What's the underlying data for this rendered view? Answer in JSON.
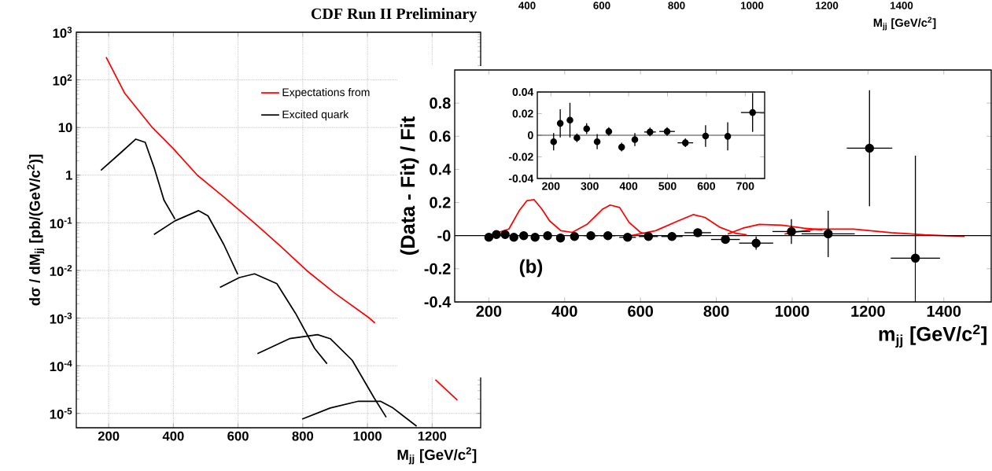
{
  "chart_data": [
    {
      "type": "line",
      "title": "CDF Run II Preliminary",
      "xlabel": "M$_{jj}$ [GeV/c$^{2}$]",
      "ylabel": "dσ / dM$_{jj}$ [pb/(GeV/c$^{2}$)]",
      "xlim": [
        100,
        1350
      ],
      "xticks": [
        200,
        400,
        600,
        800,
        1000,
        1200
      ],
      "ylim": [
        5e-06,
        1000
      ],
      "yticks": [
        {
          "value": 1e-05,
          "label": "10$^{-5}$"
        },
        {
          "value": 0.0001,
          "label": "10$^{-4}$"
        },
        {
          "value": 0.001,
          "label": "10$^{-3}$"
        },
        {
          "value": 0.01,
          "label": "10$^{-2}$"
        },
        {
          "value": 0.1,
          "label": "10$^{-1}$"
        },
        1,
        10,
        {
          "value": 100,
          "label": "10$^{2}$"
        },
        {
          "value": 1000,
          "label": "10$^{3}$"
        }
      ],
      "log": "y",
      "grid": true,
      "legend": "top right",
      "series": [
        {
          "name": "Expectations from",
          "color": "#ff0000",
          "x": [
            192,
            250,
            335,
            400,
            474,
            560,
            650,
            730,
            812,
            900,
            1006,
            1023,
            1110,
            1210,
            1278
          ],
          "values": [
            300,
            52,
            10,
            3.6,
            1,
            0.33,
            0.1,
            0.033,
            0.01,
            0.0033,
            0.001,
            0.00079,
            null,
            5.1e-05,
            1.9e-05
          ]
        },
        {
          "name": "Excited quark",
          "color": "#000000",
          "x": [
            176,
            236,
            284,
            313,
            342,
            371,
            405
          ],
          "values": [
            1.26,
            2.9,
            5.7,
            4.9,
            1.35,
            0.3,
            0.12
          ]
        },
        {
          "color": "#000000",
          "x": [
            340,
            405,
            478,
            507,
            556,
            599
          ],
          "values": [
            0.057,
            0.11,
            0.18,
            0.14,
            0.035,
            0.0083
          ]
        },
        {
          "color": "#000000",
          "x": [
            544,
            604,
            651,
            720,
            778,
            837,
            875
          ],
          "values": [
            0.0044,
            0.0071,
            0.0085,
            0.0053,
            0.00125,
            0.00023,
            0.00011
          ]
        },
        {
          "color": "#000000",
          "x": [
            660,
            759,
            846,
            885,
            953,
            1021,
            1058
          ],
          "values": [
            0.00018,
            0.00037,
            0.00045,
            0.00037,
            0.00013,
            2.1e-05,
            8.3e-06
          ]
        },
        {
          "color": "#000000",
          "x": [
            798,
            885,
            972,
            1040,
            1079,
            1152
          ],
          "values": [
            7.6e-06,
            1.3e-05,
            1.8e-05,
            1.8e-05,
            1.3e-05,
            5.4e-06
          ]
        }
      ]
    },
    {
      "type": "scatter",
      "xlabel": "m$_{jj}$ [GeV/c$^{2}$]",
      "ylabel": "(Data - Fit) / Fit",
      "xlim": [
        110,
        1525
      ],
      "xticks": [
        200,
        400,
        600,
        800,
        1000,
        1200,
        1400
      ],
      "ylim": [
        -0.4,
        1.0
      ],
      "yticks": [
        -0.4,
        -0.2,
        {
          "value": 0,
          "label": "-0"
        },
        0.2,
        0.4,
        0.6,
        0.8
      ],
      "ref_lines": [
        {
          "axis": "y",
          "value": 0
        }
      ],
      "annotations": [
        "(b)",
        "400",
        "600",
        "800",
        "1000",
        "1200",
        "1400",
        "M$_{jj}$ [GeV/c$^{2}$]"
      ],
      "series": [
        {
          "type": "line",
          "color": "#ff0000",
          "x": [
            208,
            253,
            280,
            300,
            319,
            340,
            360,
            390,
            420,
            460,
            500,
            520,
            545,
            570,
            600,
            630
          ],
          "values": [
            0.007,
            0.04,
            0.15,
            0.21,
            0.218,
            0.16,
            0.09,
            0.03,
            0.02,
            0.07,
            0.16,
            0.185,
            0.17,
            0.08,
            0.02,
            0.0
          ]
        },
        {
          "type": "line",
          "color": "#ff0000",
          "x": [
            575,
            640,
            700,
            739,
            770,
            810,
            850,
            880
          ],
          "values": [
            0.0,
            0.03,
            0.09,
            0.127,
            0.11,
            0.05,
            0.015,
            0.005
          ]
        },
        {
          "type": "line",
          "color": "#ff0000",
          "x": [
            830,
            870,
            913,
            973,
            1030,
            1080
          ],
          "values": [
            0.01,
            0.045,
            0.068,
            0.063,
            0.045,
            0.035
          ]
        },
        {
          "type": "line",
          "color": "#ff0000",
          "x": [
            980,
            1060,
            1162,
            1261,
            1350,
            1455
          ],
          "values": [
            0.01,
            0.04,
            0.04,
            0.018,
            0.005,
            -0.005
          ]
        },
        {
          "color": "#000000",
          "marker": "circle",
          "x": [
            200,
            220,
            243,
            266,
            292,
            322,
            355,
            389,
            426,
            469,
            514,
            566,
            621,
            683,
            751,
            824,
            905,
            998,
            1095,
            1204,
            1325
          ],
          "values": [
            -0.01,
            0.007,
            0.007,
            -0.01,
            0,
            -0.01,
            0,
            -0.014,
            -0.005,
            0,
            0,
            -0.01,
            -0.005,
            -0.005,
            0.018,
            -0.023,
            -0.045,
            0.025,
            0.011,
            0.528,
            -0.136
          ],
          "errors": [
            null,
            null,
            null,
            null,
            null,
            null,
            null,
            null,
            null,
            null,
            null,
            null,
            null,
            null,
            0.02,
            0.02,
            0.04,
            0.075,
            0.14,
            0.35,
            [
              -0.4,
              0.483
            ]
          ],
          "xerrors": [
            null,
            null,
            null,
            null,
            null,
            null,
            null,
            null,
            null,
            18,
            20,
            22,
            25,
            28,
            35,
            38,
            45,
            50,
            70,
            60,
            65
          ]
        }
      ]
    },
    {
      "type": "scatter",
      "xlim": [
        165,
        750
      ],
      "xticks": [
        200,
        300,
        400,
        500,
        600,
        700
      ],
      "ylim": [
        -0.04,
        0.04
      ],
      "yticks": [
        -0.04,
        -0.02,
        0,
        0.02,
        0.04
      ],
      "marker": "circle",
      "ref_lines": [
        {
          "axis": "y",
          "value": 0
        }
      ],
      "series": [
        {
          "color": "#000000",
          "x": [
            207,
            224,
            249,
            267,
            292,
            319,
            349,
            382,
            416,
            455,
            499,
            546,
            598,
            655,
            719
          ],
          "values": [
            -0.006,
            0.011,
            0.014,
            -0.0024,
            0.006,
            -0.006,
            0.0035,
            -0.011,
            -0.004,
            0.003,
            0.0035,
            -0.007,
            -0.0007,
            -0.001,
            0.021
          ],
          "errors": [
            0.008,
            0.013,
            0.016,
            0.004,
            0.005,
            0.007,
            0.004,
            0.004,
            0.006,
            0.004,
            0.004,
            0.004,
            0.01,
            0.013,
            0.018
          ],
          "xerrors": [
            null,
            null,
            null,
            null,
            null,
            null,
            null,
            null,
            null,
            15,
            20,
            20,
            null,
            null,
            30
          ]
        }
      ]
    }
  ]
}
